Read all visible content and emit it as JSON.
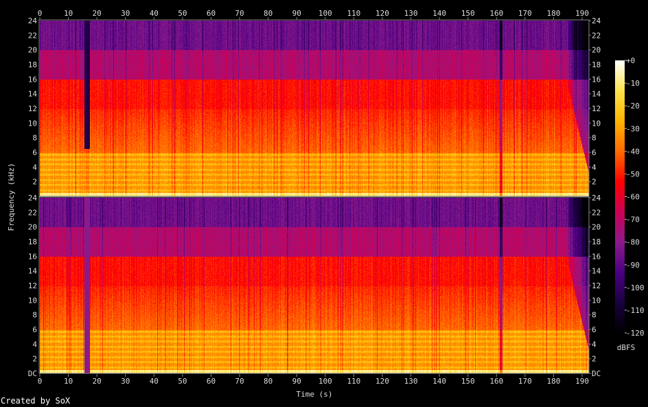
{
  "chart_data": {
    "type": "heatmap",
    "subtype": "spectrogram",
    "channels": 2,
    "xlabel": "Time (s)",
    "ylabel": "Frequency (kHz)",
    "xlim": [
      0,
      192.4
    ],
    "ylim": [
      0,
      24
    ],
    "x_ticks": [
      0,
      10,
      20,
      30,
      40,
      50,
      60,
      70,
      80,
      90,
      100,
      110,
      120,
      130,
      140,
      150,
      160,
      170,
      180,
      190
    ],
    "y_ticks": [
      "DC",
      "2",
      "4",
      "6",
      "8",
      "10",
      "12",
      "14",
      "16",
      "18",
      "20",
      "22",
      "24"
    ],
    "colorbar": {
      "label": "dBFS",
      "range": [
        -120,
        0
      ],
      "ticks": [
        "+0",
        "-10",
        "-20",
        "-30",
        "-40",
        "-50",
        "-60",
        "-70",
        "-80",
        "-90",
        "-100",
        "-110",
        "-120"
      ],
      "colors": [
        "#000000",
        "#1a0040",
        "#4b0082",
        "#8a1a8a",
        "#cc0055",
        "#ff0000",
        "#ff6a00",
        "#ffb400",
        "#ffe24a",
        "#ffffff"
      ]
    },
    "approx_band_levels_dbfs": [
      {
        "band_khz": [
          0,
          0.5
        ],
        "level": -10
      },
      {
        "band_khz": [
          0.5,
          6
        ],
        "level": -30
      },
      {
        "band_khz": [
          6,
          12
        ],
        "level": -40
      },
      {
        "band_khz": [
          12,
          16
        ],
        "level": -52
      },
      {
        "band_khz": [
          16,
          20
        ],
        "level": -72
      },
      {
        "band_khz": [
          20,
          24
        ],
        "level": -86
      }
    ],
    "events": [
      {
        "time_s": [
          15.5,
          17.5
        ],
        "note": "quiet section"
      },
      {
        "time_s": [
          161,
          162
        ],
        "note": "dropout"
      },
      {
        "time_s": [
          185,
          192.4
        ],
        "note": "fade out"
      }
    ]
  },
  "footer": {
    "credit": "Created by SoX"
  }
}
